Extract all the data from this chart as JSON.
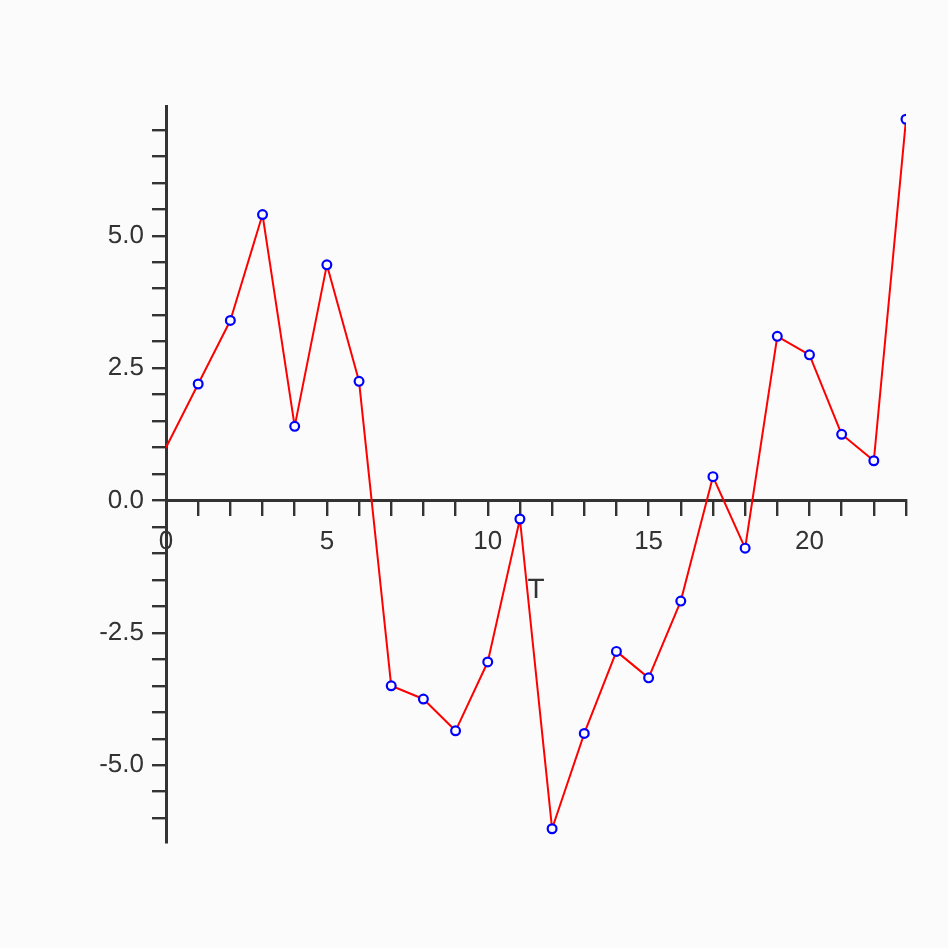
{
  "chart_data": {
    "type": "line",
    "xlabel": "T",
    "series": [
      {
        "type": "line",
        "color": "#ff0000",
        "marker": "none",
        "x": [
          0,
          1,
          2,
          3,
          4,
          5,
          6,
          7,
          8,
          9,
          10,
          11,
          12,
          13,
          14,
          15,
          16,
          17,
          18,
          19,
          20,
          21,
          22,
          23
        ],
        "values": [
          1.0,
          2.2,
          3.4,
          5.4,
          1.4,
          4.45,
          2.25,
          -3.5,
          -3.75,
          -4.35,
          -3.05,
          -0.35,
          -6.2,
          -4.4,
          -2.85,
          -3.35,
          -1.9,
          0.45,
          -0.9,
          3.1,
          2.75,
          1.25,
          0.75,
          7.2
        ]
      },
      {
        "type": "scatter",
        "color": "#0000ff",
        "marker": "circle",
        "x": [
          1,
          2,
          3,
          4,
          5,
          6,
          7,
          8,
          9,
          10,
          11,
          12,
          13,
          14,
          15,
          16,
          17,
          18,
          19,
          20,
          21,
          22,
          23
        ],
        "values": [
          2.2,
          3.4,
          5.4,
          1.4,
          4.45,
          2.25,
          -3.5,
          -3.75,
          -4.35,
          -3.05,
          -0.35,
          -6.2,
          -4.4,
          -2.85,
          -3.35,
          -1.9,
          0.45,
          -0.9,
          3.1,
          2.75,
          1.25,
          0.75,
          7.2
        ]
      }
    ],
    "xlim": [
      0,
      23
    ],
    "ylim": [
      -6.45,
      7.45
    ],
    "xticks": [
      0,
      {
        "value": 1,
        "label": null
      },
      {
        "value": 2,
        "label": null
      },
      {
        "value": 3,
        "label": null
      },
      {
        "value": 4,
        "label": null
      },
      5,
      {
        "value": 6,
        "label": null
      },
      {
        "value": 7,
        "label": null
      },
      {
        "value": 8,
        "label": null
      },
      {
        "value": 9,
        "label": null
      },
      10,
      {
        "value": 11,
        "label": null
      },
      {
        "value": 12,
        "label": null
      },
      {
        "value": 13,
        "label": null
      },
      {
        "value": 14,
        "label": null
      },
      15,
      {
        "value": 16,
        "label": null
      },
      {
        "value": 17,
        "label": null
      },
      {
        "value": 18,
        "label": null
      },
      {
        "value": 19,
        "label": null
      },
      20,
      {
        "value": 21,
        "label": null
      },
      {
        "value": 22,
        "label": null
      },
      {
        "value": 23,
        "label": null
      }
    ],
    "yticks": [
      {
        "value": -6,
        "label": null
      },
      {
        "value": -5.5,
        "label": null
      },
      {
        "value": -5,
        "label": "-5.0"
      },
      {
        "value": -4.5,
        "label": null
      },
      {
        "value": -4,
        "label": null
      },
      {
        "value": -3.5,
        "label": null
      },
      {
        "value": -3,
        "label": null
      },
      {
        "value": -2.5,
        "label": "-2.5"
      },
      {
        "value": -2,
        "label": null
      },
      {
        "value": -1.5,
        "label": null
      },
      {
        "value": -1,
        "label": null
      },
      {
        "value": -0.5,
        "label": null
      },
      {
        "value": 0,
        "label": "0.0"
      },
      {
        "value": 0.5,
        "label": null
      },
      {
        "value": 1,
        "label": null
      },
      {
        "value": 1.5,
        "label": null
      },
      {
        "value": 2,
        "label": null
      },
      {
        "value": 2.5,
        "label": "2.5"
      },
      {
        "value": 3,
        "label": null
      },
      {
        "value": 3.5,
        "label": null
      },
      {
        "value": 4,
        "label": null
      },
      {
        "value": 4.5,
        "label": null
      },
      {
        "value": 5,
        "label": "5.0"
      },
      {
        "value": 5.5,
        "label": null
      },
      {
        "value": 6,
        "label": null
      },
      {
        "value": 6.5,
        "label": null
      },
      {
        "value": 7,
        "label": null
      }
    ],
    "grid": false,
    "legend": false
  }
}
